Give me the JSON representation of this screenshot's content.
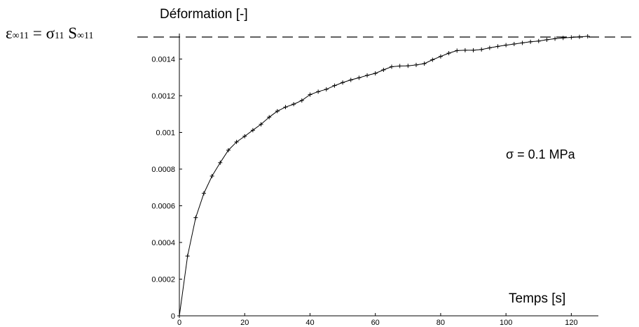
{
  "chart_data": {
    "type": "line",
    "title": "",
    "ylabel": "Déformation  [-]",
    "xlabel": "Temps [s]",
    "xlim": [
      0,
      130
    ],
    "ylim": [
      0,
      0.0016
    ],
    "x_ticks": [
      0,
      20,
      40,
      60,
      80,
      100,
      120
    ],
    "y_ticks": [
      0,
      0.0002,
      0.0004,
      0.0006,
      0.0008,
      0.001,
      0.0012,
      0.0014
    ],
    "x_tick_labels": [
      "0",
      "20",
      "40",
      "60",
      "80",
      "100",
      "120"
    ],
    "y_tick_labels": [
      "0",
      "0.0002",
      "0.0004",
      "0.0006",
      "0.0008",
      "0.001",
      "0.0012",
      "0.0014"
    ],
    "grid": false,
    "annotation": "σ = 0.1 MPa",
    "formula": {
      "eps": "ε",
      "eps_sub": "∞11",
      "eq": " = σ",
      "sigma_sub": "11",
      "s": " S",
      "s_sub": "∞11"
    },
    "asymptote": 0.00152,
    "series": [
      {
        "x": [
          0,
          2.5,
          5,
          7.5,
          10,
          12.5,
          15,
          17.5,
          20,
          22.5,
          25,
          27.5,
          30,
          32.5,
          35,
          37.5,
          40,
          42.5,
          45,
          47.5,
          50,
          52.5,
          55,
          57.5,
          60,
          62.5,
          65,
          67.5,
          70,
          72.5,
          75,
          77.5,
          80,
          82.5,
          85,
          87.5,
          90,
          92.5,
          95,
          97.5,
          100,
          102.5,
          105,
          107.5,
          110,
          112.5,
          115,
          117.5,
          120,
          122.5,
          125
        ],
        "y": [
          0,
          0.000326,
          0.000535,
          0.000668,
          0.000762,
          0.000835,
          0.000903,
          0.000948,
          0.000979,
          0.001012,
          0.001044,
          0.001083,
          0.001116,
          0.001138,
          0.001154,
          0.001174,
          0.001206,
          0.001222,
          0.001235,
          0.001255,
          0.001272,
          0.001286,
          0.001298,
          0.001311,
          0.001322,
          0.001341,
          0.001358,
          0.001362,
          0.001363,
          0.001368,
          0.001375,
          0.001396,
          0.001414,
          0.001432,
          0.001446,
          0.001448,
          0.001448,
          0.001452,
          0.001461,
          0.001469,
          0.001476,
          0.001482,
          0.001488,
          0.001494,
          0.001498,
          0.001505,
          0.001511,
          0.001515,
          0.001518,
          0.001521,
          0.001524
        ]
      }
    ]
  }
}
